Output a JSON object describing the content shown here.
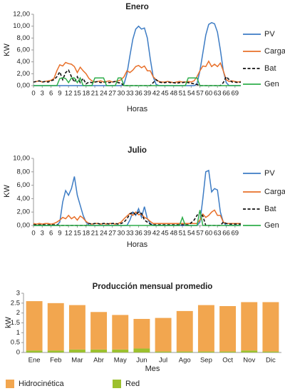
{
  "chart_data": [
    {
      "type": "line",
      "title": "Enero",
      "x_label": "Horas",
      "y_label": "KW",
      "legend": "right",
      "x": [
        0,
        1,
        2,
        3,
        4,
        5,
        6,
        7,
        8,
        9,
        10,
        11,
        12,
        13,
        14,
        15,
        16,
        17,
        18,
        19,
        20,
        21,
        22,
        23,
        24,
        25,
        26,
        27,
        28,
        29,
        30,
        31,
        32,
        33,
        34,
        35,
        36,
        37,
        38,
        39,
        40,
        41,
        42,
        43,
        44,
        45,
        46,
        47,
        48,
        49,
        50,
        51,
        52,
        53,
        54,
        55,
        56,
        57,
        58,
        59,
        60,
        61,
        62,
        63,
        64,
        65,
        66,
        67,
        68,
        69,
        70,
        71
      ],
      "xlim": [
        0,
        71
      ],
      "xticks": [
        0,
        3,
        6,
        9,
        12,
        15,
        18,
        21,
        24,
        27,
        30,
        33,
        36,
        39,
        42,
        45,
        48,
        51,
        54,
        57,
        60,
        63,
        66,
        69
      ],
      "ylim": [
        0,
        12
      ],
      "yticks": [
        {
          "value": 0,
          "label": "0,00"
        },
        {
          "value": 2,
          "label": "2,00"
        },
        {
          "value": 4,
          "label": "4,00"
        },
        {
          "value": 6,
          "label": "6,00"
        },
        {
          "value": 8,
          "label": "8,00"
        },
        {
          "value": 10,
          "label": "10,00"
        },
        {
          "value": 12,
          "label": "12,00"
        }
      ],
      "series": [
        {
          "name": "PV",
          "color": "#3d7cc4",
          "style": "solid",
          "values": [
            0,
            0,
            0,
            0,
            0,
            0,
            0,
            0,
            0,
            0,
            0,
            0,
            0,
            0,
            0,
            0,
            0,
            0,
            0,
            0,
            0,
            0,
            0,
            0,
            0,
            0,
            0,
            0,
            0,
            0,
            0,
            0.3,
            2,
            5,
            7.8,
            9.5,
            10,
            9.5,
            9.7,
            8,
            4.5,
            1.5,
            0.2,
            0,
            0,
            0,
            0,
            0,
            0,
            0,
            0,
            0,
            0,
            0,
            0,
            0,
            0.3,
            2.5,
            5.5,
            8.5,
            10.3,
            10.6,
            10.4,
            9,
            6,
            2.5,
            0.5,
            0,
            0,
            0,
            0,
            0
          ]
        },
        {
          "name": "Carga",
          "color": "#e8702a",
          "style": "solid",
          "values": [
            0.6,
            0.7,
            0.8,
            0.6,
            0.7,
            0.8,
            0.9,
            1.2,
            2.5,
            3.5,
            3.3,
            3.9,
            3.7,
            3.6,
            3.2,
            2.2,
            3.1,
            2.5,
            2,
            1.2,
            0.8,
            0.6,
            0.7,
            0.8,
            0.6,
            0.7,
            0.8,
            0.6,
            0.7,
            0.8,
            1,
            1.5,
            2.5,
            2.2,
            2.6,
            3.2,
            3.4,
            3,
            3.3,
            2.5,
            2.5,
            1.5,
            1,
            0.7,
            0.6,
            0.6,
            0.7,
            0.6,
            0.5,
            0.6,
            0.7,
            0.6,
            0.6,
            0.7,
            0.6,
            0.8,
            1.5,
            2.5,
            3.3,
            3.2,
            4.1,
            3.2,
            3.6,
            3.2,
            3.8,
            2.5,
            1,
            0.7,
            0.8,
            0.7,
            0.6,
            0.7
          ]
        },
        {
          "name": "Bat",
          "color": "#111111",
          "style": "dashed",
          "values": [
            0.6,
            0.7,
            0.8,
            0.6,
            0.7,
            0.6,
            0.8,
            1,
            1.5,
            2.3,
            1,
            2.2,
            2.6,
            1.5,
            0.6,
            1.5,
            0.5,
            1.2,
            0.3,
            0.6,
            0.5,
            0.6,
            0.7,
            0.5,
            0.6,
            0.6,
            0.5,
            0.6,
            0.7,
            0.5,
            0.4,
            0,
            0,
            0,
            0,
            0,
            0,
            0,
            0,
            0,
            0,
            0.5,
            1,
            0.6,
            0.5,
            0.5,
            0.6,
            0.5,
            0.5,
            0.4,
            0.5,
            0.5,
            0.6,
            0.5,
            0.4,
            0.3,
            0.2,
            0,
            0,
            0,
            0,
            0,
            0,
            0,
            0,
            0.5,
            1.5,
            1,
            0.6,
            0.6,
            0.5,
            0.6
          ]
        },
        {
          "name": "Gen",
          "color": "#2fae4b",
          "style": "solid",
          "values": [
            0,
            0,
            0,
            0,
            0,
            0,
            0,
            0,
            0,
            1.2,
            1.3,
            1.2,
            0.5,
            1.3,
            1.3,
            0.5,
            1.3,
            0,
            0,
            0,
            0,
            1.3,
            1.3,
            1.3,
            1.3,
            0,
            0,
            0,
            0,
            1.3,
            1.3,
            0,
            0,
            0,
            0,
            0,
            0,
            0,
            0,
            0,
            0,
            0,
            0,
            0,
            0,
            0,
            0,
            0,
            0,
            0,
            0,
            0,
            0,
            1.3,
            1.3,
            1.3,
            1.3,
            0,
            0,
            0,
            0,
            0,
            0,
            0,
            0,
            0,
            0,
            0,
            0,
            0,
            0,
            0
          ]
        }
      ]
    },
    {
      "type": "line",
      "title": "Julio",
      "x_label": "Horas",
      "y_label": "KW",
      "legend": "right",
      "x": [
        0,
        1,
        2,
        3,
        4,
        5,
        6,
        7,
        8,
        9,
        10,
        11,
        12,
        13,
        14,
        15,
        16,
        17,
        18,
        19,
        20,
        21,
        22,
        23,
        24,
        25,
        26,
        27,
        28,
        29,
        30,
        31,
        32,
        33,
        34,
        35,
        36,
        37,
        38,
        39,
        40,
        41,
        42,
        43,
        44,
        45,
        46,
        47,
        48,
        49,
        50,
        51,
        52,
        53,
        54,
        55,
        56,
        57,
        58,
        59,
        60,
        61,
        62,
        63,
        64,
        65,
        66,
        67,
        68,
        69,
        70,
        71
      ],
      "xlim": [
        0,
        71
      ],
      "xticks": [
        0,
        3,
        6,
        9,
        12,
        15,
        18,
        21,
        24,
        27,
        30,
        33,
        36,
        39,
        42,
        45,
        48,
        51,
        54,
        57,
        60,
        63,
        66,
        69
      ],
      "ylim": [
        0,
        10
      ],
      "yticks": [
        {
          "value": 0,
          "label": "0,00"
        },
        {
          "value": 2,
          "label": "2,00"
        },
        {
          "value": 4,
          "label": "4,00"
        },
        {
          "value": 6,
          "label": "6,00"
        },
        {
          "value": 8,
          "label": "8,00"
        },
        {
          "value": 10,
          "label": "10,00"
        }
      ],
      "series": [
        {
          "name": "PV",
          "color": "#3d7cc4",
          "style": "solid",
          "values": [
            0,
            0,
            0,
            0,
            0,
            0,
            0,
            0,
            0,
            0.5,
            3.5,
            5.2,
            4.5,
            5.5,
            7.3,
            4.5,
            3,
            1.5,
            0.5,
            0,
            0,
            0,
            0,
            0,
            0,
            0,
            0,
            0,
            0,
            0,
            0,
            0,
            0,
            0.8,
            2,
            1.5,
            2.5,
            1.2,
            2.8,
            1,
            0.3,
            0,
            0,
            0,
            0,
            0,
            0,
            0,
            0,
            0,
            0,
            0,
            0,
            0,
            0,
            0,
            0,
            0.5,
            4,
            8,
            8.2,
            5,
            5.5,
            5.3,
            2,
            0.5,
            0,
            0,
            0,
            0,
            0,
            0
          ]
        },
        {
          "name": "Carga",
          "color": "#e8702a",
          "style": "solid",
          "values": [
            0.3,
            0.2,
            0.3,
            0.2,
            0.3,
            0.3,
            0.2,
            0.3,
            0.5,
            0.8,
            1.2,
            1,
            1.5,
            1,
            1.3,
            0.8,
            1.4,
            1.1,
            0.6,
            0.3,
            0.2,
            0.3,
            0.3,
            0.2,
            0.3,
            0.2,
            0.3,
            0.3,
            0.2,
            0.3,
            0.5,
            1,
            1.4,
            1.8,
            1.5,
            2,
            1.6,
            1.7,
            1.2,
            1,
            0.6,
            0.3,
            0.3,
            0.3,
            0.3,
            0.3,
            0.3,
            0.3,
            0.3,
            0.3,
            0.3,
            0.3,
            0.3,
            0.3,
            0.3,
            0.3,
            0.3,
            0.8,
            1.7,
            1.2,
            1.5,
            2,
            2.3,
            1.5,
            1.5,
            0.5,
            0.3,
            0.3,
            0.3,
            0.3,
            0.3,
            0.3
          ]
        },
        {
          "name": "Bat",
          "color": "#111111",
          "style": "dashed",
          "values": [
            0.1,
            0.1,
            0.1,
            0.1,
            0.1,
            0.1,
            0.1,
            0.1,
            0.1,
            0,
            0,
            0,
            0,
            0,
            0,
            0,
            0,
            0,
            0,
            0.3,
            0.2,
            0.3,
            0.3,
            0.2,
            0.3,
            0.3,
            0.2,
            0.3,
            0.3,
            0.2,
            0.3,
            0.5,
            1,
            1.7,
            2,
            1.6,
            2,
            1.8,
            0.8,
            0.5,
            0.2,
            0.1,
            0.1,
            0.1,
            0.1,
            0.1,
            0.1,
            0.1,
            0.1,
            0.1,
            0.1,
            0.1,
            0.1,
            0.1,
            0.4,
            0.8,
            1.5,
            2,
            1.4,
            0,
            0,
            0,
            0,
            0,
            0,
            0.5,
            0.3,
            0.2,
            0.2,
            0.2,
            0.2,
            0.2
          ]
        },
        {
          "name": "Gen",
          "color": "#2fae4b",
          "style": "solid",
          "values": [
            0,
            0,
            0,
            0,
            0,
            0,
            0,
            0,
            0,
            0,
            0,
            0,
            0,
            0,
            0,
            0,
            0,
            0,
            0,
            0,
            0,
            0,
            0,
            0,
            0,
            0,
            0,
            0,
            0,
            0,
            0,
            0,
            0,
            0,
            0,
            0,
            0,
            0,
            0,
            0,
            0,
            0,
            0,
            0,
            0,
            0,
            0,
            0,
            0,
            0,
            0,
            1.2,
            0,
            0,
            0,
            0,
            0,
            2.3,
            0,
            0,
            0,
            0,
            0,
            0,
            0,
            0,
            0,
            0,
            0,
            0,
            0,
            0
          ]
        }
      ]
    },
    {
      "type": "bar",
      "title": "Producción mensual promedio",
      "x_label": "Mes",
      "y_label": "kW",
      "legend": "bottom",
      "categories": [
        "Ene",
        "Feb",
        "Mar",
        "Abr",
        "May",
        "Jun",
        "Jul",
        "Ago",
        "Sep",
        "Oct",
        "Nov",
        "Dic"
      ],
      "ylim": [
        0,
        3
      ],
      "yticks": [
        0,
        0.5,
        1,
        1.5,
        2,
        2.5,
        3
      ],
      "series": [
        {
          "name": "Hidrocinética",
          "color": "#f2a64f",
          "values": [
            2.5,
            2.4,
            2.25,
            1.9,
            1.75,
            1.5,
            1.7,
            2.05,
            2.35,
            2.3,
            2.45,
            2.5
          ]
        },
        {
          "name": "Red",
          "color": "#9cc02e",
          "values": [
            0.1,
            0.1,
            0.15,
            0.15,
            0.15,
            0.2,
            0.05,
            0.05,
            0.05,
            0.05,
            0.1,
            0.05
          ]
        }
      ]
    }
  ]
}
